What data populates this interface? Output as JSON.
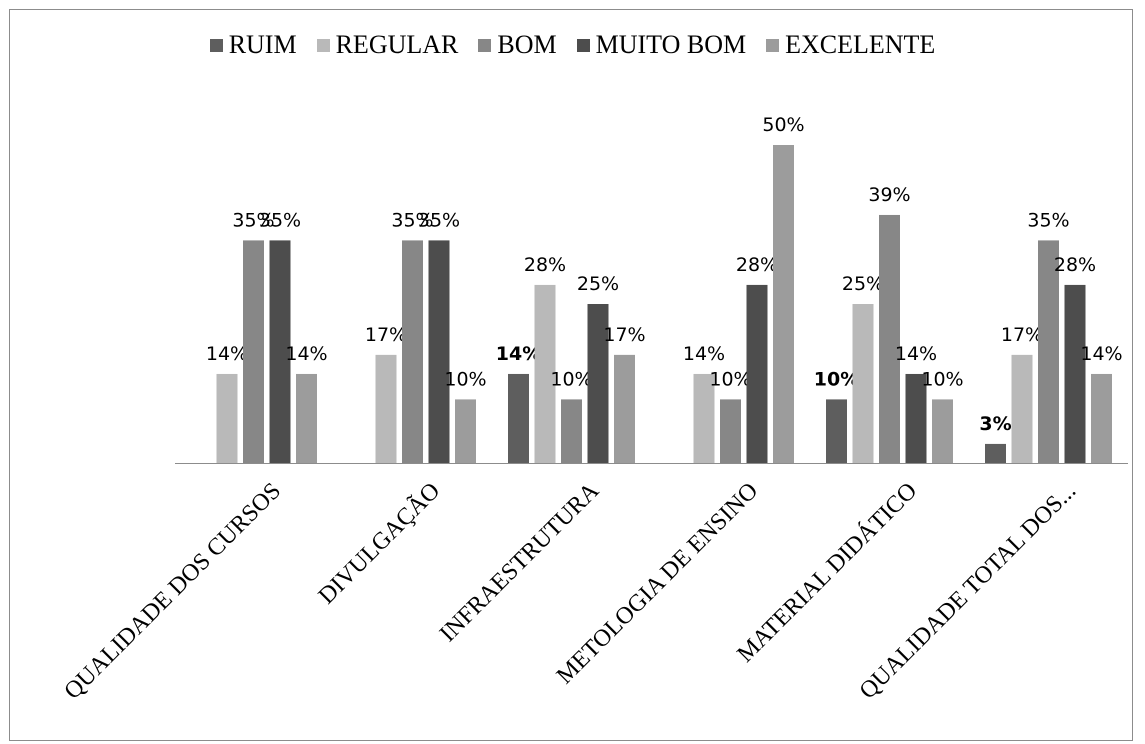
{
  "chart_data": {
    "type": "bar",
    "categories": [
      "QUALIDADE DOS CURSOS",
      "DIVULGAÇÃO",
      "INFRAESTRUTURA",
      "METOLOGIA DE ENSINO",
      "MATERIAL DIDÁTICO",
      "QUALIDADE TOTAL DOS..."
    ],
    "series": [
      {
        "name": "RUIM",
        "color": "#5e5e5e",
        "values": [
          null,
          null,
          14,
          null,
          10,
          3
        ],
        "labels": [
          null,
          null,
          "14%",
          null,
          "10%",
          "3%"
        ],
        "bold_labels": true
      },
      {
        "name": "REGULAR",
        "color": "#b9b9b9",
        "values": [
          14,
          17,
          28,
          14,
          25,
          17
        ],
        "labels": [
          "14%",
          "17%",
          "28%",
          "14%",
          "25%",
          "17%"
        ],
        "bold_labels": false
      },
      {
        "name": "BOM",
        "color": "#878787",
        "values": [
          35,
          35,
          10,
          10,
          39,
          35
        ],
        "labels": [
          "35%",
          "35%",
          "10%",
          "10%",
          "39%",
          "35%"
        ],
        "bold_labels": false
      },
      {
        "name": "MUITO BOM",
        "color": "#4d4d4d",
        "values": [
          35,
          35,
          25,
          28,
          14,
          28
        ],
        "labels": [
          "35%",
          "35%",
          "25%",
          "28%",
          "14%",
          "28%"
        ],
        "bold_labels": false
      },
      {
        "name": "EXCELENTE",
        "color": "#9c9c9c",
        "values": [
          14,
          10,
          17,
          50,
          10,
          14
        ],
        "labels": [
          "14%",
          "10%",
          "17%",
          "50%",
          "10%",
          "14%"
        ],
        "bold_labels": false
      }
    ],
    "ylim": [
      0,
      50
    ],
    "grid": false,
    "legend_position": "top"
  }
}
